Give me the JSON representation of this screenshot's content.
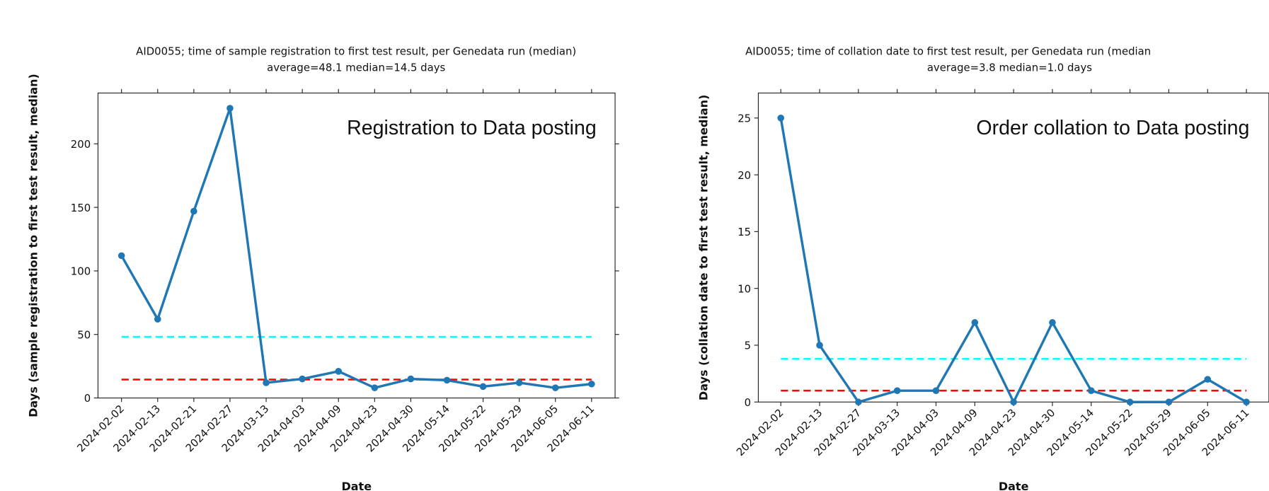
{
  "chart_data": [
    {
      "type": "line",
      "title": "AID0055; time of sample registration to first test result, per Genedata run (median)",
      "subtitle": "average=48.1 median=14.5 days",
      "annotation": "Registration to Data posting",
      "x_label": "Date",
      "y_label": "Days (sample registration to first test result, median)",
      "categories": [
        "2024-02-02",
        "2024-02-13",
        "2024-02-21",
        "2024-02-27",
        "2024-03-13",
        "2024-04-03",
        "2024-04-09",
        "2024-04-23",
        "2024-04-30",
        "2024-05-14",
        "2024-05-22",
        "2024-05-29",
        "2024-06-05",
        "2024-06-11"
      ],
      "values": [
        112,
        62,
        147,
        228,
        12,
        15,
        21,
        8,
        15,
        14,
        9,
        12,
        8,
        11
      ],
      "color": "#1f77b4",
      "average_line": 48.1,
      "average_color": "#00ffff",
      "median_line": 14.5,
      "median_color": "#ff0000",
      "ylim": [
        0,
        240
      ],
      "yticks": [
        0,
        50,
        100,
        150,
        200
      ]
    },
    {
      "type": "line",
      "title": "AID0055; time of collation date to first test result, per Genedata run (median",
      "subtitle": "average=3.8 median=1.0 days",
      "annotation": "Order collation to Data posting",
      "x_label": "Date",
      "y_label": "Days (collation date to first test result, median)",
      "categories": [
        "2024-02-02",
        "2024-02-13",
        "2024-02-27",
        "2024-03-13",
        "2024-04-03",
        "2024-04-09",
        "2024-04-23",
        "2024-04-30",
        "2024-05-14",
        "2024-05-22",
        "2024-05-29",
        "2024-06-05",
        "2024-06-11"
      ],
      "values": [
        25,
        5,
        0,
        1,
        1,
        7,
        0,
        7,
        1,
        0,
        0,
        2,
        0
      ],
      "color": "#1f77b4",
      "average_line": 3.8,
      "average_color": "#00ffff",
      "median_line": 1.0,
      "median_color": "#ff0000",
      "ylim": [
        0,
        27.2
      ],
      "yticks": [
        0,
        5,
        10,
        15,
        20,
        25
      ]
    }
  ]
}
